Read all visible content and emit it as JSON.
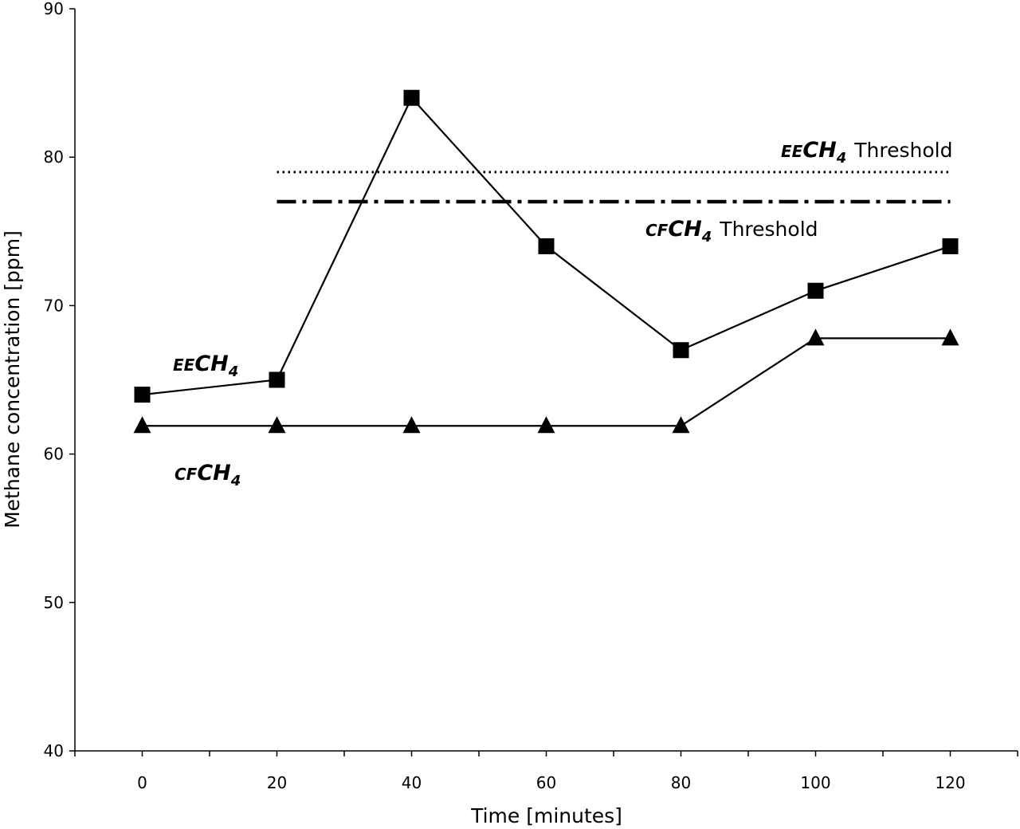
{
  "chart_data": {
    "type": "line",
    "xlabel": "Time [minutes]",
    "ylabel": "Methane concentration [ppm]",
    "xlim": [
      -10,
      130
    ],
    "ylim": [
      40,
      90
    ],
    "x_ticks": [
      0,
      20,
      40,
      60,
      80,
      100,
      120
    ],
    "y_ticks": [
      40,
      50,
      60,
      70,
      80,
      90
    ],
    "grid": false,
    "x": [
      0,
      20,
      40,
      60,
      80,
      100,
      120
    ],
    "series": [
      {
        "key": "ee",
        "marker": "square",
        "values": [
          64,
          65,
          84,
          74,
          67,
          71,
          74
        ],
        "label": {
          "prefix": "EE",
          "main": "CH",
          "sub": "4"
        }
      },
      {
        "key": "cf",
        "marker": "triangle",
        "values": [
          61.9,
          61.9,
          61.9,
          61.9,
          61.9,
          67.8,
          67.8
        ],
        "label": {
          "prefix": "CF",
          "main": "CH",
          "sub": "4"
        }
      }
    ],
    "thresholds": [
      {
        "key": "ee",
        "style": "dotted",
        "value": 79,
        "x_range": [
          20,
          120
        ],
        "label": {
          "prefix": "EE",
          "main": "CH",
          "sub": "4",
          "suffix": "Threshold"
        }
      },
      {
        "key": "cf",
        "style": "dash-dot",
        "value": 77,
        "x_range": [
          20,
          120
        ],
        "label": {
          "prefix": "CF",
          "main": "CH",
          "sub": "4",
          "suffix": "Threshold"
        }
      }
    ],
    "colors": {
      "line": "#000000",
      "background": "#ffffff"
    }
  }
}
